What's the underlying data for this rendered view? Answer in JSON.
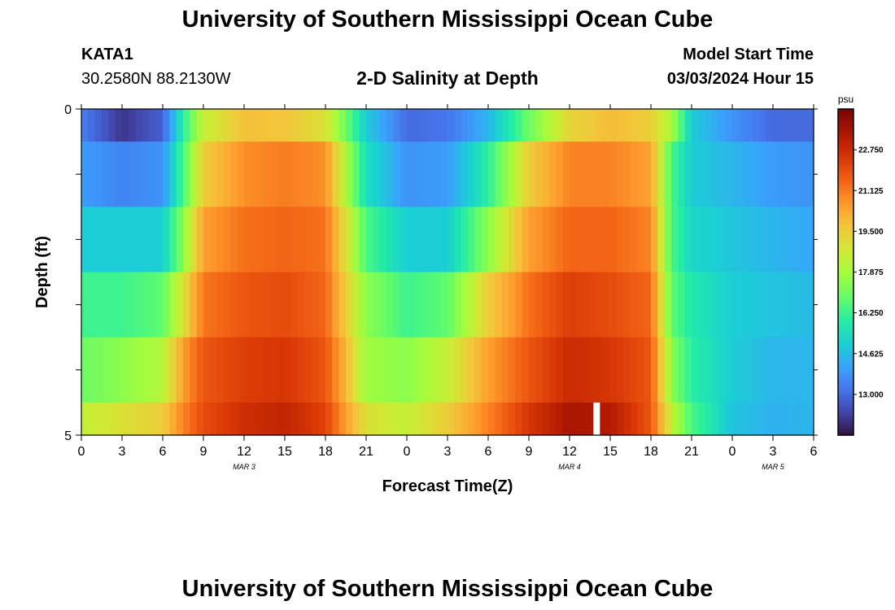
{
  "header": {
    "title": "University of Southern Mississippi Ocean Cube",
    "station": "KATA1",
    "coords": "30.2580N  88.2130W",
    "subtitle": "2-D Salinity at Depth",
    "model_start_label": "Model Start Time",
    "model_start_value": "03/03/2024 Hour 15",
    "footer_title": "University of Southern Mississippi Ocean Cube"
  },
  "chart_data": {
    "type": "heatmap",
    "title": "2-D Salinity at Depth",
    "xlabel": "Forecast Time(Z)",
    "ylabel": "Depth (ft)",
    "x_range_hours": [
      0,
      54
    ],
    "x_ticks": [
      {
        "h": 0,
        "label": "0"
      },
      {
        "h": 3,
        "label": "3"
      },
      {
        "h": 6,
        "label": "6"
      },
      {
        "h": 9,
        "label": "9"
      },
      {
        "h": 12,
        "label": "12"
      },
      {
        "h": 15,
        "label": "15"
      },
      {
        "h": 18,
        "label": "18"
      },
      {
        "h": 21,
        "label": "21"
      },
      {
        "h": 24,
        "label": "0"
      },
      {
        "h": 27,
        "label": "3"
      },
      {
        "h": 30,
        "label": "6"
      },
      {
        "h": 33,
        "label": "9"
      },
      {
        "h": 36,
        "label": "12"
      },
      {
        "h": 39,
        "label": "15"
      },
      {
        "h": 42,
        "label": "18"
      },
      {
        "h": 45,
        "label": "21"
      },
      {
        "h": 48,
        "label": "0"
      },
      {
        "h": 51,
        "label": "3"
      },
      {
        "h": 54,
        "label": "6"
      }
    ],
    "date_labels": [
      {
        "h": 12,
        "label": "MAR 3"
      },
      {
        "h": 36,
        "label": "MAR 4"
      },
      {
        "h": 51,
        "label": "MAR 5"
      }
    ],
    "y_range_ft": [
      0,
      5
    ],
    "y_tick_labels": [
      {
        "depth": 0,
        "label": "0"
      },
      {
        "depth": 5,
        "label": "5"
      }
    ],
    "depth_layers": [
      0,
      0.5,
      1.5,
      2.5,
      3.5,
      4.5
    ],
    "layer_bounds": [
      0,
      0.5,
      1.5,
      2.5,
      3.5,
      4.5,
      5
    ],
    "times": [
      0,
      3,
      6,
      7.5,
      9,
      12,
      15,
      18,
      19.5,
      21,
      24,
      27,
      30,
      33,
      36,
      39,
      42,
      43.5,
      45,
      48,
      51,
      54
    ],
    "values": [
      [
        13.4,
        12.0,
        12.8,
        16.0,
        18.5,
        19.8,
        19.7,
        19.0,
        17.0,
        15.0,
        13.0,
        13.2,
        14.5,
        17.0,
        19.3,
        19.9,
        19.5,
        18.0,
        15.0,
        13.8,
        13.0,
        13.0
      ],
      [
        14.0,
        13.5,
        13.8,
        16.5,
        19.5,
        20.8,
        21.1,
        20.8,
        18.0,
        15.5,
        13.8,
        14.0,
        16.0,
        19.5,
        21.0,
        21.0,
        20.5,
        16.5,
        15.0,
        14.5,
        14.0,
        13.8
      ],
      [
        15.0,
        15.0,
        15.0,
        17.5,
        20.5,
        21.3,
        21.5,
        21.3,
        19.0,
        16.5,
        15.0,
        15.0,
        17.5,
        20.5,
        21.5,
        21.5,
        21.0,
        16.5,
        15.3,
        14.8,
        14.5,
        14.2
      ],
      [
        16.3,
        16.3,
        16.8,
        19.0,
        21.2,
        21.8,
        22.0,
        21.5,
        19.5,
        17.5,
        16.3,
        16.8,
        19.5,
        21.3,
        22.3,
        22.0,
        21.5,
        16.8,
        15.8,
        15.0,
        14.8,
        14.6
      ],
      [
        17.0,
        17.5,
        18.2,
        20.5,
        21.8,
        22.3,
        22.5,
        21.8,
        20.0,
        17.8,
        17.5,
        18.5,
        20.5,
        21.8,
        22.8,
        22.5,
        21.8,
        17.5,
        16.0,
        15.0,
        14.5,
        14.5
      ],
      [
        18.5,
        19.0,
        19.5,
        21.0,
        22.0,
        22.7,
        23.0,
        22.2,
        20.5,
        19.0,
        18.5,
        19.5,
        21.0,
        22.5,
        23.5,
        23.3,
        21.8,
        18.5,
        16.5,
        14.8,
        14.4,
        14.5
      ]
    ],
    "marker": {
      "h": 38,
      "depth_from": 4.5,
      "depth_to": 5
    },
    "colorbar": {
      "unit": "psu",
      "min": 11.375,
      "max": 24.375,
      "tick_values": [
        13.0,
        14.625,
        16.25,
        17.875,
        19.5,
        21.125,
        22.75
      ],
      "tick_labels": [
        "13.000",
        "14.625",
        "16.250",
        "17.875",
        "19.500",
        "21.125",
        "22.750"
      ]
    }
  }
}
